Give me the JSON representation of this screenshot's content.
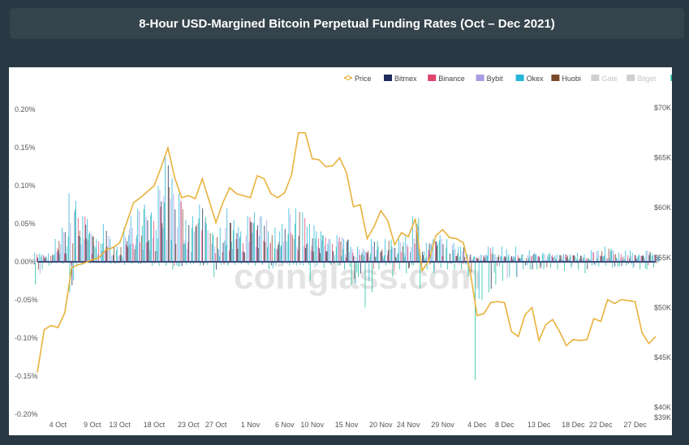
{
  "header": {
    "title": "8-Hour USD-Margined Bitcoin Perpetual Funding Rates (Oct – Dec 2021)"
  },
  "watermark": "coinglass.com",
  "chart_data": {
    "type": "bar",
    "title": "8-Hour USD-Margined Bitcoin Perpetual Funding Rates (Oct – Dec 2021)",
    "legend_position": "top-right",
    "grid": false,
    "x_ticks": [
      "4 Oct",
      "9 Oct",
      "13 Oct",
      "18 Oct",
      "23 Oct",
      "27 Oct",
      "1 Nov",
      "6 Nov",
      "10 Nov",
      "15 Nov",
      "20 Nov",
      "24 Nov",
      "29 Nov",
      "4 Dec",
      "8 Dec",
      "13 Dec",
      "18 Dec",
      "22 Dec",
      "27 Dec"
    ],
    "x_range": [
      "2021-10-01",
      "2021-12-30"
    ],
    "y_left": {
      "range": [
        -0.2,
        0.2
      ],
      "ticks": [
        0.2,
        0.15,
        0.1,
        0.05,
        0,
        -0.05,
        -0.1,
        -0.15,
        -0.2
      ],
      "labels": [
        "0.20%",
        "0.15%",
        "0.10%",
        "0.05%",
        "0.00%",
        "-0.05%",
        "-0.10%",
        "-0.15%",
        "-0.20%"
      ]
    },
    "y_right": {
      "range": [
        39000,
        71000
      ],
      "ticks": [
        70000,
        65000,
        60000,
        55000,
        50000,
        45000,
        40000,
        39000
      ],
      "labels": [
        "$70K",
        "$65K",
        "$60K",
        "$55K",
        "$50K",
        "$45K",
        "$40K",
        "$39K"
      ]
    },
    "legend": [
      {
        "name": "Price",
        "color": "#e8b23c",
        "marker": "line"
      },
      {
        "name": "Bitmex",
        "color": "#1f2a5c",
        "marker": "bar"
      },
      {
        "name": "Binance",
        "color": "#e0456b",
        "marker": "bar"
      },
      {
        "name": "Bybit",
        "color": "#a99be0",
        "marker": "bar"
      },
      {
        "name": "Okex",
        "color": "#27b6d8",
        "marker": "bar"
      },
      {
        "name": "Huobi",
        "color": "#7a4a2a",
        "marker": "bar"
      },
      {
        "name": "Gate",
        "color": "#cfcfcf",
        "marker": "bar"
      },
      {
        "name": "Bitget",
        "color": "#cfcfcf",
        "marker": "bar"
      },
      {
        "name": "dYdX",
        "color": "#1fbfa0",
        "marker": "bar"
      }
    ],
    "price_series": {
      "name": "Price",
      "points": [
        [
          "2021-10-01",
          43500
        ],
        [
          "2021-10-02",
          47800
        ],
        [
          "2021-10-03",
          48200
        ],
        [
          "2021-10-04",
          48000
        ],
        [
          "2021-10-05",
          49500
        ],
        [
          "2021-10-06",
          54000
        ],
        [
          "2021-10-07",
          54300
        ],
        [
          "2021-10-08",
          54500
        ],
        [
          "2021-10-09",
          54800
        ],
        [
          "2021-10-10",
          55000
        ],
        [
          "2021-10-11",
          55800
        ],
        [
          "2021-10-12",
          56000
        ],
        [
          "2021-10-13",
          56500
        ],
        [
          "2021-10-14",
          58500
        ],
        [
          "2021-10-15",
          60500
        ],
        [
          "2021-10-16",
          61000
        ],
        [
          "2021-10-17",
          61600
        ],
        [
          "2021-10-18",
          62200
        ],
        [
          "2021-10-19",
          64000
        ],
        [
          "2021-10-20",
          66000
        ],
        [
          "2021-10-21",
          63000
        ],
        [
          "2021-10-22",
          61000
        ],
        [
          "2021-10-23",
          61200
        ],
        [
          "2021-10-24",
          60900
        ],
        [
          "2021-10-25",
          62900
        ],
        [
          "2021-10-26",
          60700
        ],
        [
          "2021-10-27",
          58500
        ],
        [
          "2021-10-28",
          60500
        ],
        [
          "2021-10-29",
          62000
        ],
        [
          "2021-10-30",
          61400
        ],
        [
          "2021-10-31",
          61200
        ],
        [
          "2021-11-01",
          61000
        ],
        [
          "2021-11-02",
          63200
        ],
        [
          "2021-11-03",
          62900
        ],
        [
          "2021-11-04",
          61400
        ],
        [
          "2021-11-05",
          61000
        ],
        [
          "2021-11-06",
          61500
        ],
        [
          "2021-11-07",
          63300
        ],
        [
          "2021-11-08",
          67500
        ],
        [
          "2021-11-09",
          67500
        ],
        [
          "2021-11-10",
          64900
        ],
        [
          "2021-11-11",
          64800
        ],
        [
          "2021-11-12",
          64100
        ],
        [
          "2021-11-13",
          64200
        ],
        [
          "2021-11-14",
          65000
        ],
        [
          "2021-11-15",
          63500
        ],
        [
          "2021-11-16",
          60100
        ],
        [
          "2021-11-17",
          60300
        ],
        [
          "2021-11-18",
          56900
        ],
        [
          "2021-11-19",
          58100
        ],
        [
          "2021-11-20",
          59700
        ],
        [
          "2021-11-21",
          58700
        ],
        [
          "2021-11-22",
          56300
        ],
        [
          "2021-11-23",
          57500
        ],
        [
          "2021-11-24",
          57100
        ],
        [
          "2021-11-25",
          58900
        ],
        [
          "2021-11-26",
          53700
        ],
        [
          "2021-11-27",
          54700
        ],
        [
          "2021-11-28",
          57200
        ],
        [
          "2021-11-29",
          57800
        ],
        [
          "2021-11-30",
          57000
        ],
        [
          "2021-12-01",
          56900
        ],
        [
          "2021-12-02",
          56500
        ],
        [
          "2021-12-03",
          53600
        ],
        [
          "2021-12-04",
          49200
        ],
        [
          "2021-12-05",
          49400
        ],
        [
          "2021-12-06",
          50500
        ],
        [
          "2021-12-07",
          50600
        ],
        [
          "2021-12-08",
          50500
        ],
        [
          "2021-12-09",
          47600
        ],
        [
          "2021-12-10",
          47100
        ],
        [
          "2021-12-11",
          49300
        ],
        [
          "2021-12-12",
          50000
        ],
        [
          "2021-12-13",
          46700
        ],
        [
          "2021-12-14",
          48300
        ],
        [
          "2021-12-15",
          48800
        ],
        [
          "2021-12-16",
          47600
        ],
        [
          "2021-12-17",
          46200
        ],
        [
          "2021-12-18",
          46800
        ],
        [
          "2021-12-19",
          46700
        ],
        [
          "2021-12-20",
          46800
        ],
        [
          "2021-12-21",
          48900
        ],
        [
          "2021-12-22",
          48600
        ],
        [
          "2021-12-23",
          50800
        ],
        [
          "2021-12-24",
          50400
        ],
        [
          "2021-12-25",
          50800
        ],
        [
          "2021-12-26",
          50700
        ],
        [
          "2021-12-27",
          50600
        ],
        [
          "2021-12-28",
          47500
        ],
        [
          "2021-12-29",
          46400
        ],
        [
          "2021-12-30",
          47100
        ]
      ]
    },
    "funding_rate_daily_range_pct": [
      {
        "date": "2021-10-01",
        "min": -0.03,
        "max": 0.012
      },
      {
        "date": "2021-10-02",
        "min": -0.01,
        "max": 0.01
      },
      {
        "date": "2021-10-03",
        "min": -0.005,
        "max": 0.011
      },
      {
        "date": "2021-10-04",
        "min": -0.002,
        "max": 0.03
      },
      {
        "date": "2021-10-05",
        "min": -0.003,
        "max": 0.045
      },
      {
        "date": "2021-10-06",
        "min": -0.04,
        "max": 0.09
      },
      {
        "date": "2021-10-07",
        "min": -0.005,
        "max": 0.08
      },
      {
        "date": "2021-10-08",
        "min": -0.003,
        "max": 0.06
      },
      {
        "date": "2021-10-09",
        "min": -0.002,
        "max": 0.04
      },
      {
        "date": "2021-10-10",
        "min": -0.002,
        "max": 0.03
      },
      {
        "date": "2021-10-11",
        "min": -0.002,
        "max": 0.05
      },
      {
        "date": "2021-10-12",
        "min": -0.003,
        "max": 0.03
      },
      {
        "date": "2021-10-13",
        "min": -0.002,
        "max": 0.02
      },
      {
        "date": "2021-10-14",
        "min": -0.004,
        "max": 0.045
      },
      {
        "date": "2021-10-15",
        "min": -0.003,
        "max": 0.06
      },
      {
        "date": "2021-10-16",
        "min": -0.003,
        "max": 0.07
      },
      {
        "date": "2021-10-17",
        "min": -0.002,
        "max": 0.075
      },
      {
        "date": "2021-10-18",
        "min": -0.005,
        "max": 0.065
      },
      {
        "date": "2021-10-19",
        "min": -0.005,
        "max": 0.1
      },
      {
        "date": "2021-10-20",
        "min": -0.005,
        "max": 0.14
      },
      {
        "date": "2021-10-21",
        "min": -0.01,
        "max": 0.11
      },
      {
        "date": "2021-10-22",
        "min": -0.006,
        "max": 0.09
      },
      {
        "date": "2021-10-23",
        "min": -0.004,
        "max": 0.055
      },
      {
        "date": "2021-10-24",
        "min": -0.003,
        "max": 0.06
      },
      {
        "date": "2021-10-25",
        "min": -0.005,
        "max": 0.075
      },
      {
        "date": "2021-10-26",
        "min": -0.004,
        "max": 0.05
      },
      {
        "date": "2021-10-27",
        "min": -0.02,
        "max": 0.035
      },
      {
        "date": "2021-10-28",
        "min": -0.004,
        "max": 0.045
      },
      {
        "date": "2021-10-29",
        "min": -0.005,
        "max": 0.07
      },
      {
        "date": "2021-10-30",
        "min": -0.004,
        "max": 0.055
      },
      {
        "date": "2021-10-31",
        "min": -0.003,
        "max": 0.04
      },
      {
        "date": "2021-11-01",
        "min": -0.004,
        "max": 0.06
      },
      {
        "date": "2021-11-02",
        "min": -0.005,
        "max": 0.065
      },
      {
        "date": "2021-11-03",
        "min": -0.004,
        "max": 0.06
      },
      {
        "date": "2021-11-04",
        "min": -0.01,
        "max": 0.04
      },
      {
        "date": "2021-11-05",
        "min": -0.005,
        "max": 0.045
      },
      {
        "date": "2021-11-06",
        "min": -0.004,
        "max": 0.05
      },
      {
        "date": "2021-11-07",
        "min": -0.005,
        "max": 0.07
      },
      {
        "date": "2021-11-08",
        "min": -0.005,
        "max": 0.07
      },
      {
        "date": "2021-11-09",
        "min": -0.005,
        "max": 0.065
      },
      {
        "date": "2021-11-10",
        "min": -0.025,
        "max": 0.05
      },
      {
        "date": "2021-11-11",
        "min": -0.005,
        "max": 0.04
      },
      {
        "date": "2021-11-12",
        "min": -0.008,
        "max": 0.035
      },
      {
        "date": "2021-11-13",
        "min": -0.004,
        "max": 0.03
      },
      {
        "date": "2021-11-14",
        "min": -0.005,
        "max": 0.035
      },
      {
        "date": "2021-11-15",
        "min": -0.01,
        "max": 0.03
      },
      {
        "date": "2021-11-16",
        "min": -0.03,
        "max": 0.02
      },
      {
        "date": "2021-11-17",
        "min": -0.02,
        "max": 0.02
      },
      {
        "date": "2021-11-18",
        "min": -0.06,
        "max": 0.015
      },
      {
        "date": "2021-11-19",
        "min": -0.04,
        "max": 0.03
      },
      {
        "date": "2021-11-20",
        "min": -0.01,
        "max": 0.02
      },
      {
        "date": "2021-11-21",
        "min": -0.005,
        "max": 0.03
      },
      {
        "date": "2021-11-22",
        "min": -0.02,
        "max": 0.02
      },
      {
        "date": "2021-11-23",
        "min": -0.01,
        "max": 0.03
      },
      {
        "date": "2021-11-24",
        "min": -0.015,
        "max": 0.035
      },
      {
        "date": "2021-11-25",
        "min": -0.005,
        "max": 0.06
      },
      {
        "date": "2021-11-26",
        "min": -0.035,
        "max": 0.015
      },
      {
        "date": "2021-11-27",
        "min": -0.01,
        "max": 0.025
      },
      {
        "date": "2021-11-28",
        "min": -0.015,
        "max": 0.03
      },
      {
        "date": "2021-11-29",
        "min": -0.008,
        "max": 0.035
      },
      {
        "date": "2021-11-30",
        "min": -0.01,
        "max": 0.03
      },
      {
        "date": "2021-12-01",
        "min": -0.01,
        "max": 0.025
      },
      {
        "date": "2021-12-02",
        "min": -0.01,
        "max": 0.02
      },
      {
        "date": "2021-12-03",
        "min": -0.02,
        "max": 0.01
      },
      {
        "date": "2021-12-04",
        "min": -0.155,
        "max": 0.008
      },
      {
        "date": "2021-12-05",
        "min": -0.05,
        "max": 0.01
      },
      {
        "date": "2021-12-06",
        "min": -0.04,
        "max": 0.02
      },
      {
        "date": "2021-12-07",
        "min": -0.03,
        "max": 0.01
      },
      {
        "date": "2021-12-08",
        "min": -0.025,
        "max": 0.02
      },
      {
        "date": "2021-12-09",
        "min": -0.02,
        "max": 0.01
      },
      {
        "date": "2021-12-10",
        "min": -0.02,
        "max": 0.02
      },
      {
        "date": "2021-12-11",
        "min": -0.01,
        "max": 0.01
      },
      {
        "date": "2021-12-12",
        "min": -0.01,
        "max": 0.015
      },
      {
        "date": "2021-12-13",
        "min": -0.01,
        "max": 0.01
      },
      {
        "date": "2021-12-14",
        "min": -0.01,
        "max": 0.012
      },
      {
        "date": "2021-12-15",
        "min": -0.008,
        "max": 0.01
      },
      {
        "date": "2021-12-16",
        "min": -0.01,
        "max": 0.01
      },
      {
        "date": "2021-12-17",
        "min": -0.012,
        "max": 0.01
      },
      {
        "date": "2021-12-18",
        "min": -0.008,
        "max": 0.01
      },
      {
        "date": "2021-12-19",
        "min": -0.01,
        "max": 0.012
      },
      {
        "date": "2021-12-20",
        "min": -0.015,
        "max": 0.01
      },
      {
        "date": "2021-12-21",
        "min": -0.005,
        "max": 0.015
      },
      {
        "date": "2021-12-22",
        "min": -0.006,
        "max": 0.015
      },
      {
        "date": "2021-12-23",
        "min": -0.005,
        "max": 0.02
      },
      {
        "date": "2021-12-24",
        "min": -0.008,
        "max": 0.015
      },
      {
        "date": "2021-12-25",
        "min": -0.006,
        "max": 0.012
      },
      {
        "date": "2021-12-26",
        "min": -0.005,
        "max": 0.015
      },
      {
        "date": "2021-12-27",
        "min": -0.008,
        "max": 0.012
      },
      {
        "date": "2021-12-28",
        "min": -0.01,
        "max": 0.01
      },
      {
        "date": "2021-12-29",
        "min": -0.01,
        "max": 0.015
      },
      {
        "date": "2021-12-30",
        "min": -0.008,
        "max": 0.01
      }
    ]
  }
}
